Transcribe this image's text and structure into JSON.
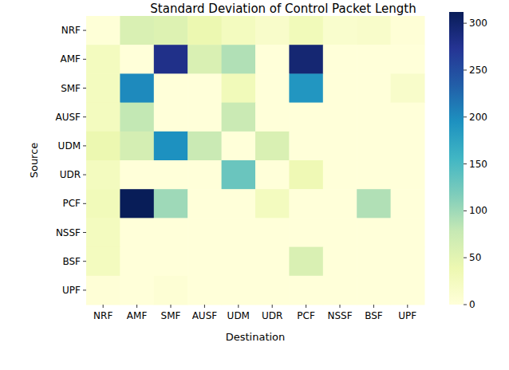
{
  "chart_data": {
    "type": "heatmap",
    "title": "Standard Deviation of Control Packet Length",
    "x_label": "Destination",
    "y_label": "Source",
    "x_categories": [
      "NRF",
      "AMF",
      "SMF",
      "AUSF",
      "UDM",
      "UDR",
      "PCF",
      "NSSF",
      "BSF",
      "UPF"
    ],
    "y_categories": [
      "NRF",
      "AMF",
      "SMF",
      "AUSF",
      "UDM",
      "UDR",
      "PCF",
      "NSSF",
      "BSF",
      "UPF"
    ],
    "values": [
      [
        2,
        60,
        55,
        40,
        25,
        15,
        30,
        12,
        15,
        3
      ],
      [
        25,
        0,
        280,
        60,
        90,
        0,
        295,
        0,
        0,
        0
      ],
      [
        25,
        200,
        0,
        0,
        30,
        0,
        190,
        0,
        0,
        15
      ],
      [
        25,
        80,
        0,
        0,
        75,
        0,
        0,
        0,
        0,
        0
      ],
      [
        40,
        65,
        195,
        75,
        0,
        60,
        0,
        0,
        0,
        0
      ],
      [
        25,
        0,
        0,
        0,
        130,
        0,
        35,
        0,
        0,
        0
      ],
      [
        30,
        312,
        100,
        0,
        0,
        25,
        0,
        0,
        90,
        0
      ],
      [
        25,
        0,
        0,
        0,
        0,
        0,
        0,
        0,
        0,
        0
      ],
      [
        25,
        0,
        0,
        0,
        0,
        0,
        60,
        0,
        0,
        0
      ],
      [
        3,
        0,
        5,
        0,
        0,
        0,
        0,
        0,
        0,
        0
      ]
    ],
    "colorbar_range": [
      0,
      312
    ],
    "colorbar_ticks": [
      0,
      50,
      100,
      150,
      200,
      250,
      300
    ]
  }
}
